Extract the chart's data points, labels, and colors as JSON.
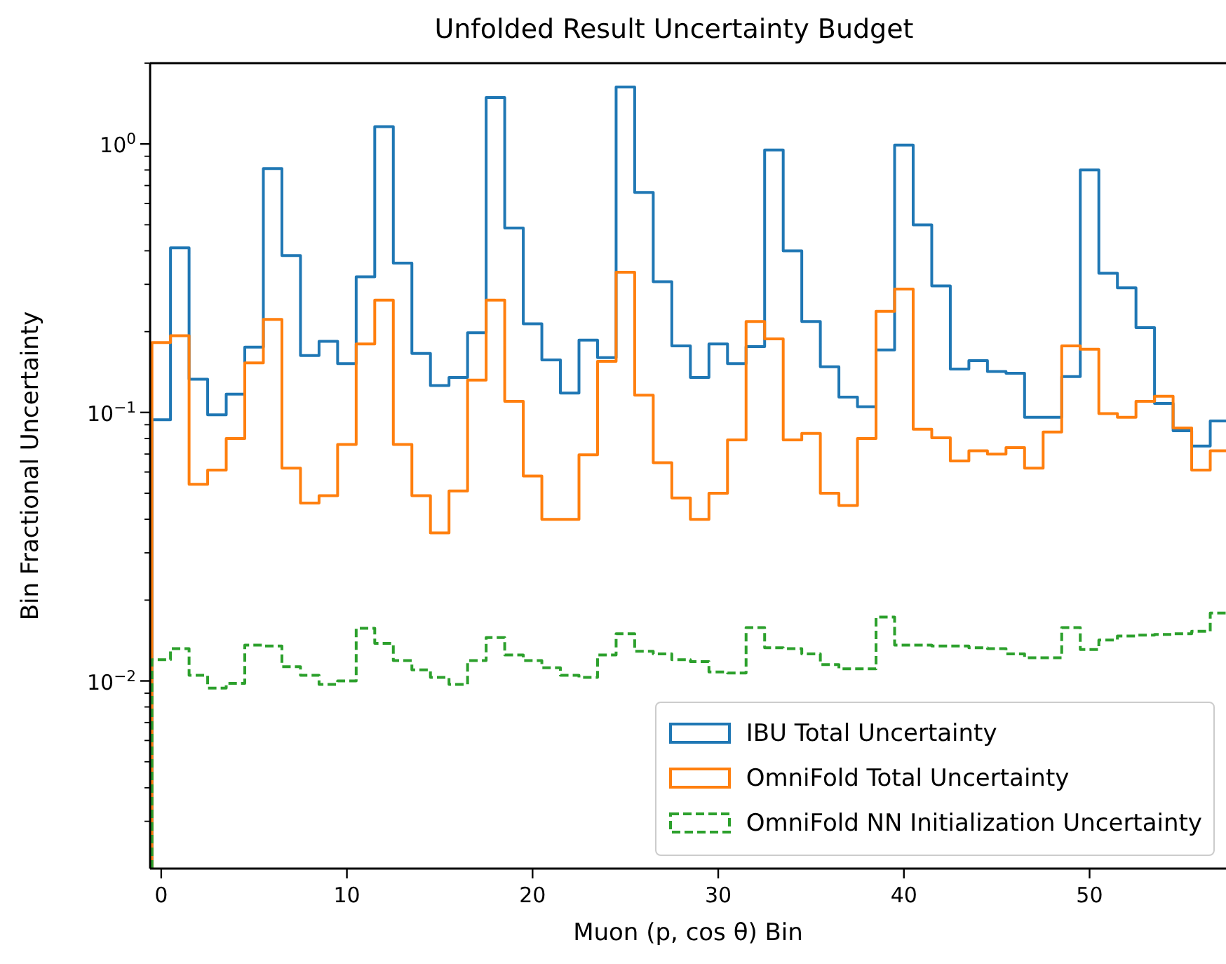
{
  "chart_data": {
    "type": "histogram",
    "title": "Unfolded Result Uncertainty Budget",
    "xlabel": "Muon (p, cos θ) Bin",
    "ylabel": "Bin Fractional Uncertainty",
    "bins": [
      -0.5,
      0.5,
      1.5,
      2.5,
      3.5,
      4.5,
      5.5,
      6.5,
      7.5,
      8.5,
      9.5,
      10.5,
      11.5,
      12.5,
      13.5,
      14.5,
      15.5,
      16.5,
      17.5,
      18.5,
      19.5,
      20.5,
      21.5,
      22.5,
      23.5,
      24.5,
      25.5,
      26.5,
      27.5,
      28.5,
      29.5,
      30.5,
      31.5,
      32.5,
      33.5,
      34.5,
      35.5,
      36.5,
      37.5,
      38.5,
      39.5,
      40.5,
      41.5,
      42.5,
      43.5,
      44.5,
      45.5,
      46.5,
      47.5,
      48.5,
      49.5,
      50.5,
      51.5,
      52.5,
      53.5,
      54.5,
      55.5,
      56.5,
      57.5
    ],
    "series": [
      {
        "name": "IBU Total Uncertainty",
        "color": "#1f77b4",
        "line_style": "solid",
        "values": [
          0.094,
          0.41,
          0.133,
          0.098,
          0.117,
          0.175,
          0.81,
          0.384,
          0.163,
          0.184,
          0.152,
          0.32,
          1.16,
          0.36,
          0.166,
          0.126,
          0.135,
          0.198,
          1.49,
          0.486,
          0.214,
          0.157,
          0.118,
          0.186,
          0.16,
          1.63,
          0.66,
          0.307,
          0.177,
          0.135,
          0.18,
          0.152,
          0.176,
          0.95,
          0.4,
          0.218,
          0.148,
          0.114,
          0.105,
          0.171,
          0.99,
          0.5,
          0.296,
          0.145,
          0.156,
          0.142,
          0.14,
          0.096,
          0.096,
          0.136,
          0.8,
          0.33,
          0.291,
          0.207,
          0.108,
          0.0855,
          0.075,
          0.093
        ]
      },
      {
        "name": "OmniFold Total Uncertainty",
        "color": "#ff7f0e",
        "line_style": "solid",
        "values": [
          0.182,
          0.193,
          0.054,
          0.061,
          0.08,
          0.153,
          0.222,
          0.062,
          0.046,
          0.049,
          0.076,
          0.18,
          0.262,
          0.076,
          0.049,
          0.0356,
          0.051,
          0.132,
          0.262,
          0.11,
          0.058,
          0.04,
          0.04,
          0.0695,
          0.155,
          0.333,
          0.116,
          0.065,
          0.048,
          0.04,
          0.05,
          0.079,
          0.218,
          0.188,
          0.079,
          0.0835,
          0.05,
          0.045,
          0.08,
          0.238,
          0.288,
          0.0866,
          0.0805,
          0.066,
          0.072,
          0.07,
          0.074,
          0.062,
          0.0845,
          0.177,
          0.172,
          0.099,
          0.096,
          0.11,
          0.115,
          0.0875,
          0.061,
          0.072
        ]
      },
      {
        "name": "OmniFold NN Initialization Uncertainty",
        "color": "#2ca02c",
        "line_style": "dashed",
        "values": [
          0.012,
          0.0132,
          0.0105,
          0.0094,
          0.0098,
          0.0136,
          0.0135,
          0.0113,
          0.0105,
          0.0097,
          0.01,
          0.0157,
          0.0138,
          0.0119,
          0.011,
          0.0103,
          0.0097,
          0.0119,
          0.0145,
          0.0125,
          0.0119,
          0.0112,
          0.0105,
          0.0103,
          0.0125,
          0.015,
          0.0129,
          0.0126,
          0.012,
          0.0118,
          0.0108,
          0.0107,
          0.0158,
          0.0133,
          0.0132,
          0.0126,
          0.0115,
          0.0111,
          0.0111,
          0.0173,
          0.0136,
          0.0136,
          0.0135,
          0.0135,
          0.0133,
          0.0132,
          0.0126,
          0.0122,
          0.0122,
          0.0158,
          0.0131,
          0.0142,
          0.0147,
          0.0148,
          0.0149,
          0.015,
          0.0153,
          0.0179
        ]
      }
    ],
    "xlim": [
      -0.6,
      57.5
    ],
    "xticks": [
      0,
      10,
      20,
      30,
      40,
      50
    ],
    "ylim": [
      0.002,
      2
    ],
    "log": true,
    "yticks": [
      {
        "value": 0.003,
        "label": null
      },
      {
        "value": 0.004,
        "label": null
      },
      {
        "value": 0.005,
        "label": null
      },
      {
        "value": 0.006,
        "label": null
      },
      {
        "value": 0.007,
        "label": null
      },
      {
        "value": 0.008,
        "label": null
      },
      {
        "value": 0.009,
        "label": null
      },
      {
        "value": 0.01,
        "label": "10$^{−2}$"
      },
      {
        "value": 0.02,
        "label": null
      },
      {
        "value": 0.03,
        "label": null
      },
      {
        "value": 0.04,
        "label": null
      },
      {
        "value": 0.05,
        "label": null
      },
      {
        "value": 0.06,
        "label": null
      },
      {
        "value": 0.07,
        "label": null
      },
      {
        "value": 0.08,
        "label": null
      },
      {
        "value": 0.09,
        "label": null
      },
      {
        "value": 0.1,
        "label": "10$^{−1}$"
      },
      {
        "value": 0.2,
        "label": null
      },
      {
        "value": 0.3,
        "label": null
      },
      {
        "value": 0.4,
        "label": null
      },
      {
        "value": 0.5,
        "label": null
      },
      {
        "value": 0.6,
        "label": null
      },
      {
        "value": 0.7,
        "label": null
      },
      {
        "value": 0.8,
        "label": null
      },
      {
        "value": 0.9,
        "label": null
      },
      {
        "value": 1,
        "label": "10$^{0}$"
      },
      {
        "value": 2,
        "label": null
      }
    ],
    "grid": false,
    "legend": "bottom right"
  }
}
